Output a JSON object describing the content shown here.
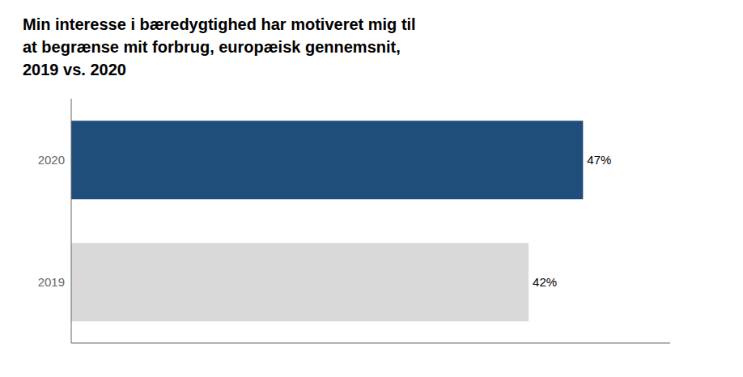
{
  "chart_data": {
    "type": "bar",
    "title": "Min interesse i bæredygtighed har motiveret mig til\nat begrænse mit forbrug, europæisk gennemsnit,\n2019 vs. 2020",
    "orientation": "horizontal",
    "categories": [
      "2020",
      "2019"
    ],
    "values": [
      47,
      42
    ],
    "value_labels": [
      "47%",
      "42%"
    ],
    "colors": [
      "#1e4e79",
      "#d9d9d9"
    ],
    "xlim": [
      0,
      55
    ],
    "grid": false,
    "data_labels": true,
    "tick_labels": "y"
  }
}
